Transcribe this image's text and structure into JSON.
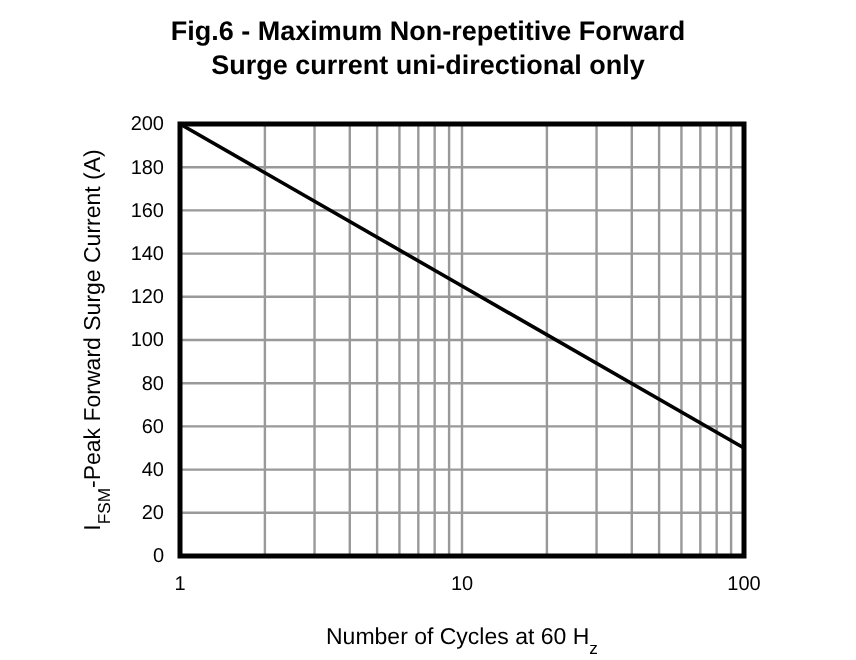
{
  "chart_data": {
    "type": "line",
    "title": "Fig.6 - Maximum Non-repetitive Forward\nSurge current uni-directional only",
    "xlabel": "Number of Cycles at 60 H$_{z}$",
    "ylabel": "I$_{FSM}$-Peak Forward Surge Current (A)",
    "x": [
      1,
      10,
      100
    ],
    "series": [
      {
        "color": "#000000",
        "values": [
          200,
          125,
          50
        ]
      }
    ],
    "log": "x",
    "xlim": [
      1,
      100
    ],
    "ylim": [
      0,
      200
    ],
    "xticks": [
      1,
      {
        "value": 2,
        "label": null
      },
      {
        "value": 3,
        "label": null
      },
      {
        "value": 4,
        "label": null
      },
      {
        "value": 5,
        "label": null
      },
      {
        "value": 6,
        "label": null
      },
      {
        "value": 7,
        "label": null
      },
      {
        "value": 8,
        "label": null
      },
      {
        "value": 9,
        "label": null
      },
      10,
      {
        "value": 20,
        "label": null
      },
      {
        "value": 30,
        "label": null
      },
      {
        "value": 40,
        "label": null
      },
      {
        "value": 50,
        "label": null
      },
      {
        "value": 60,
        "label": null
      },
      {
        "value": 70,
        "label": null
      },
      {
        "value": 80,
        "label": null
      },
      {
        "value": 90,
        "label": null
      },
      100
    ],
    "yticks": [
      0,
      20,
      40,
      60,
      80,
      100,
      120,
      140,
      160,
      180,
      200
    ],
    "grid": true,
    "line_style": "solid",
    "marker": "none"
  }
}
